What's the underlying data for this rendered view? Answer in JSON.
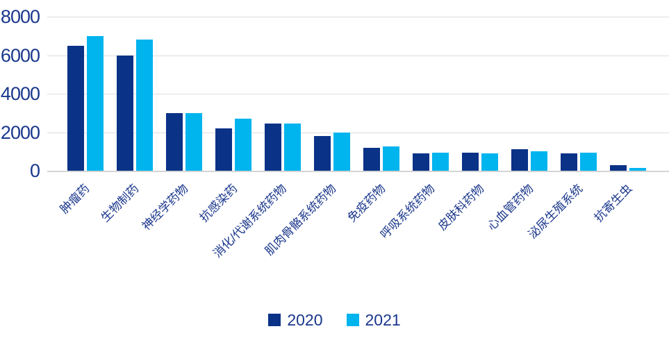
{
  "chart_data": {
    "type": "bar",
    "title": "",
    "xlabel": "",
    "ylabel": "",
    "categories": [
      "肿瘤药",
      "生物制药",
      "神经学药物",
      "抗感染药",
      "消化/代谢系统药物",
      "肌肉骨骼系统药物",
      "免疫药物",
      "呼吸系统药物",
      "皮肤科药物",
      "心血管药物",
      "泌尿生殖系统",
      "抗寄生虫"
    ],
    "series": [
      {
        "name": "2020",
        "color": "#0a3287",
        "values": [
          6500,
          6000,
          3000,
          2200,
          2450,
          1800,
          1200,
          900,
          950,
          1100,
          900,
          300
        ]
      },
      {
        "name": "2021",
        "color": "#00b4ee",
        "values": [
          7000,
          6800,
          3000,
          2700,
          2450,
          2000,
          1250,
          950,
          900,
          1000,
          950,
          150
        ]
      }
    ],
    "y_ticks": [
      0,
      2000,
      4000,
      6000,
      8000
    ],
    "ylim": [
      0,
      8000
    ],
    "grid": true,
    "legend_position": "bottom"
  },
  "colors": {
    "bar_2020": "#0a3287",
    "bar_2021": "#00b4ee",
    "text": "#1a378c",
    "gridline": "#dcdcdc",
    "background": "#ffffff"
  }
}
